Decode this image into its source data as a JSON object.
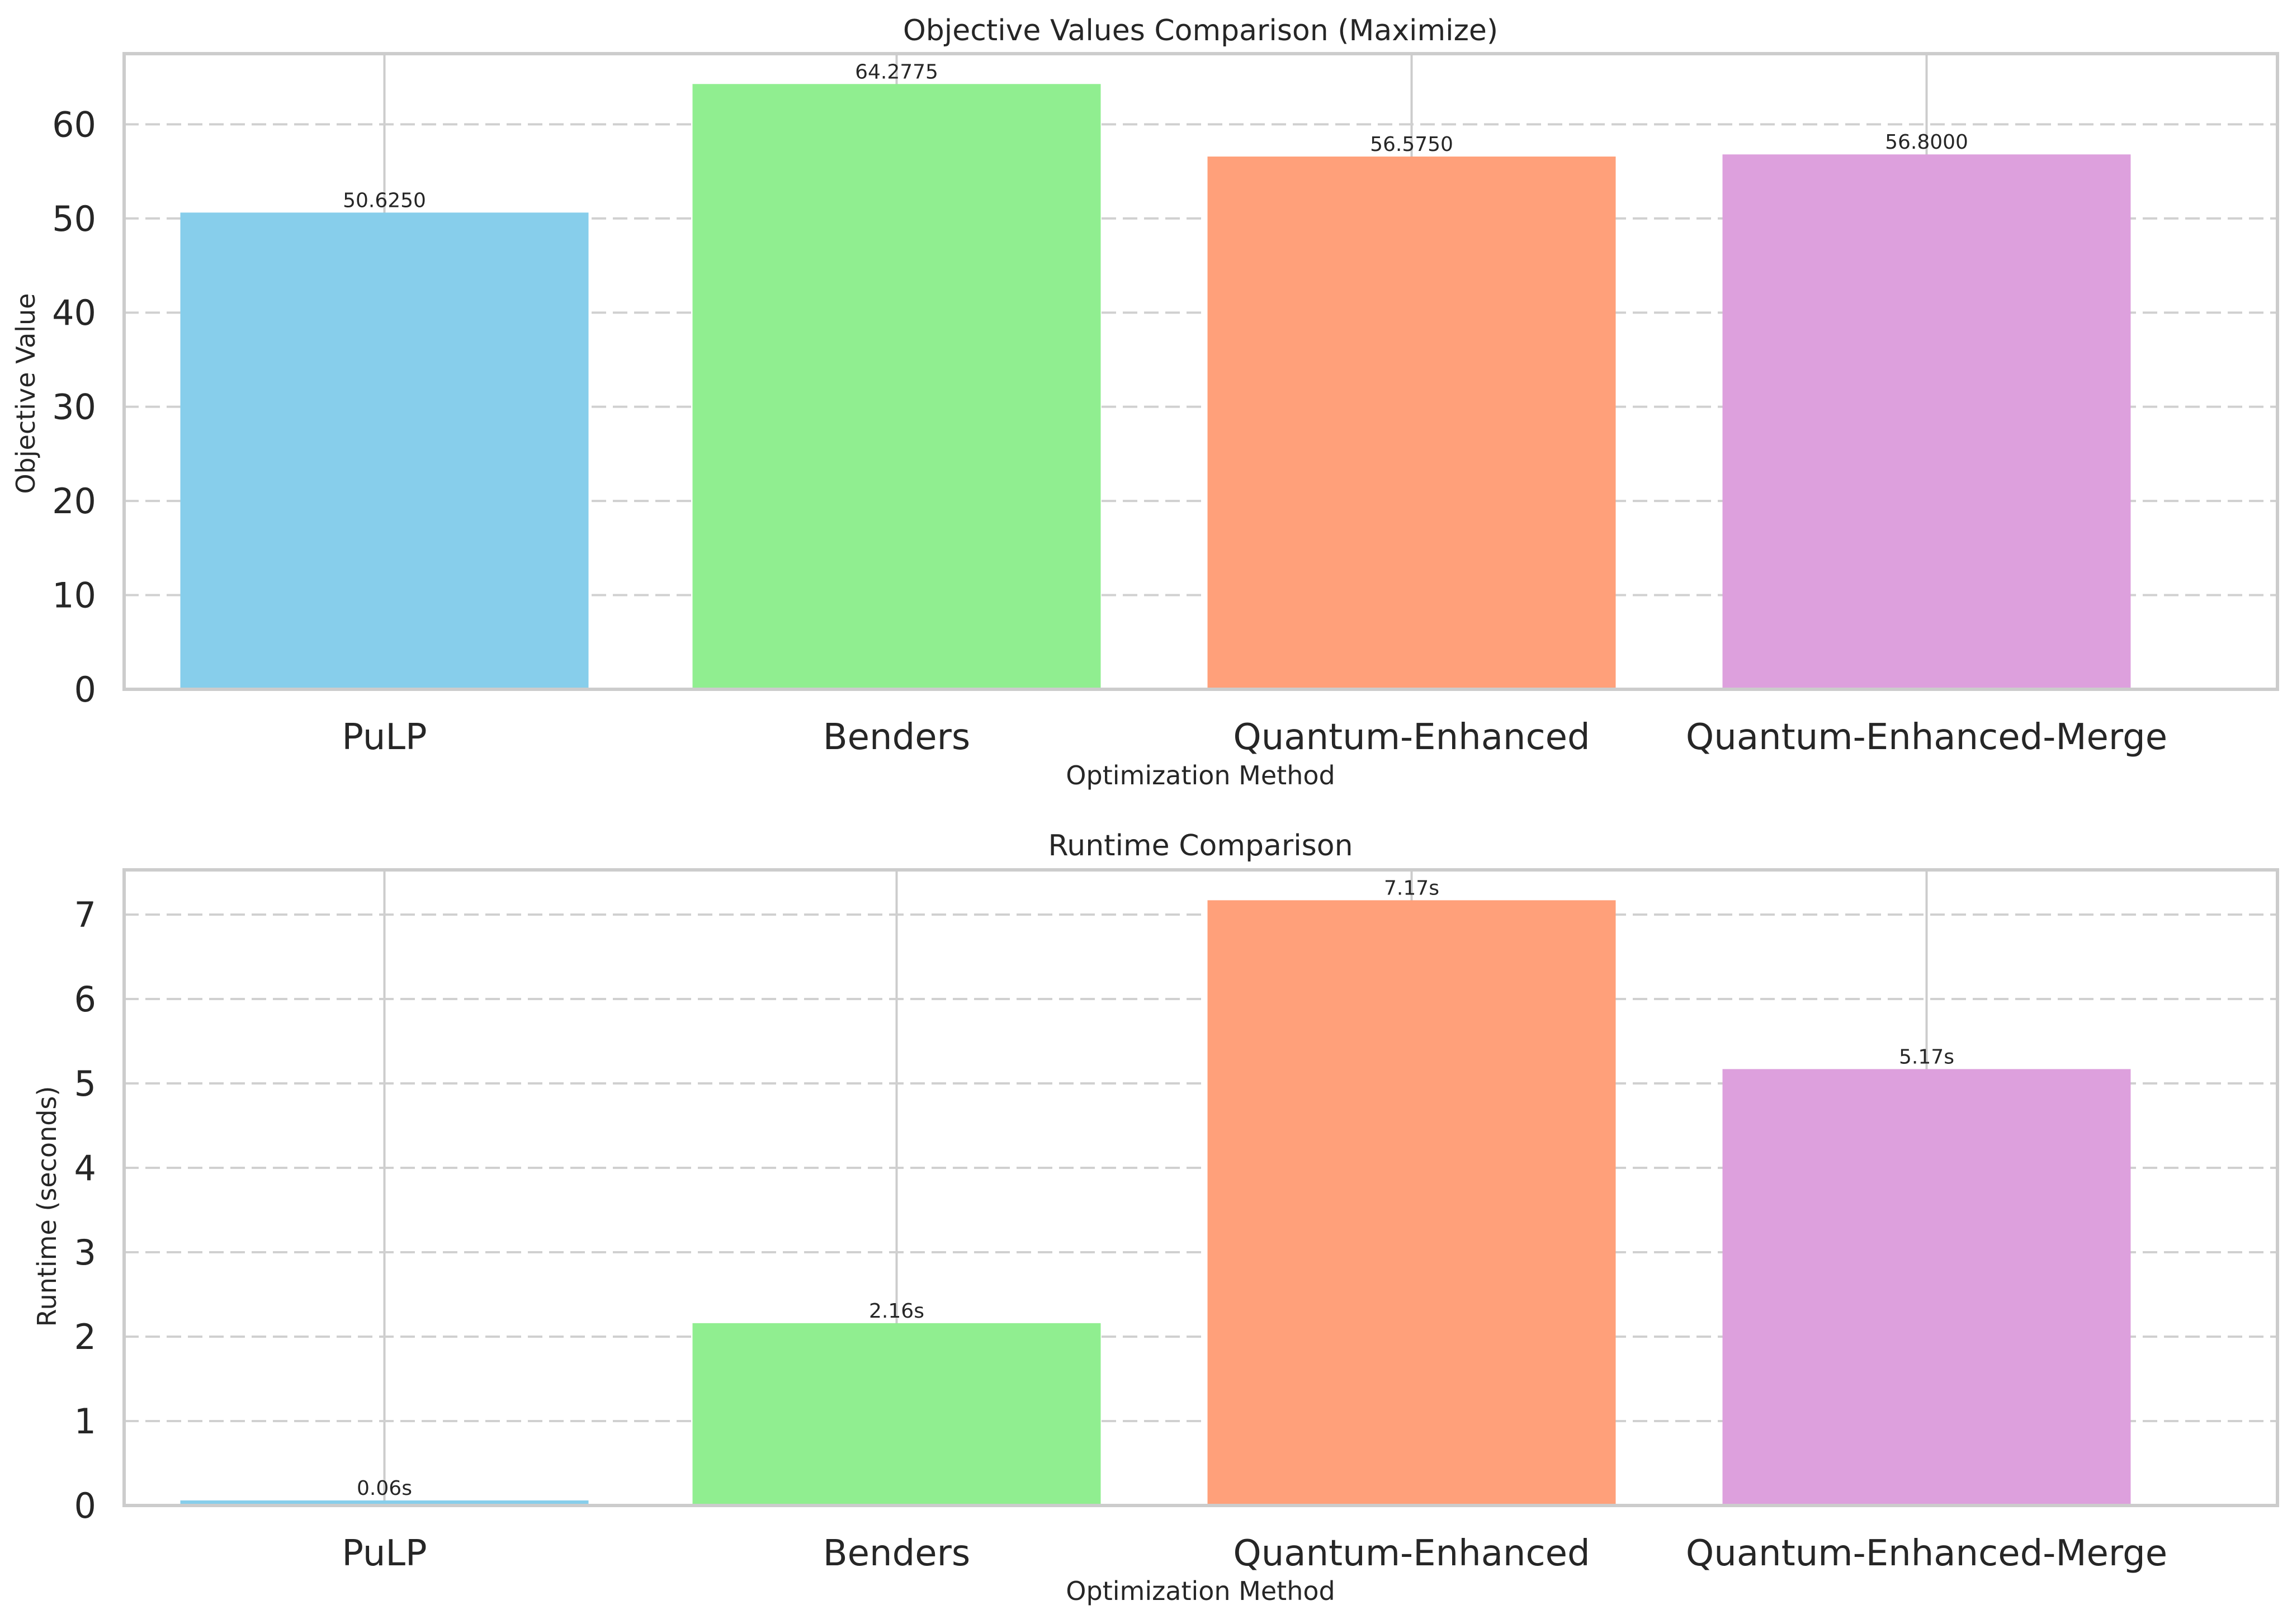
{
  "chart_data": [
    {
      "type": "bar",
      "title": "Objective Values Comparison (Maximize)",
      "xlabel": "Optimization Method",
      "ylabel": "Objective Value",
      "categories": [
        "PuLP",
        "Benders",
        "Quantum-Enhanced",
        "Quantum-Enhanced-Merge"
      ],
      "values": [
        50.625,
        64.2775,
        56.575,
        56.8
      ],
      "data_labels": [
        "50.6250",
        "64.2775",
        "56.5750",
        "56.8000"
      ],
      "colors": [
        "#87CEEB",
        "#90EE90",
        "#FFA07A",
        "#DDA0DD"
      ],
      "ylim": [
        0,
        67.5
      ],
      "yticks": [
        0,
        10,
        20,
        30,
        40,
        50,
        60
      ],
      "ytick_labels": [
        "0",
        "10",
        "20",
        "30",
        "40",
        "50",
        "60"
      ],
      "grid": "y dashed, x solid"
    },
    {
      "type": "bar",
      "title": "Runtime Comparison",
      "xlabel": "Optimization Method",
      "ylabel": "Runtime (seconds)",
      "categories": [
        "PuLP",
        "Benders",
        "Quantum-Enhanced",
        "Quantum-Enhanced-Merge"
      ],
      "values": [
        0.06,
        2.16,
        7.17,
        5.17
      ],
      "data_labels": [
        "0.06s",
        "2.16s",
        "7.17s",
        "5.17s"
      ],
      "colors": [
        "#87CEEB",
        "#90EE90",
        "#FFA07A",
        "#DDA0DD"
      ],
      "ylim": [
        0,
        7.53
      ],
      "yticks": [
        0,
        1,
        2,
        3,
        4,
        5,
        6,
        7
      ],
      "ytick_labels": [
        "0",
        "1",
        "2",
        "3",
        "4",
        "5",
        "6",
        "7"
      ],
      "grid": "y dashed, x solid"
    }
  ]
}
